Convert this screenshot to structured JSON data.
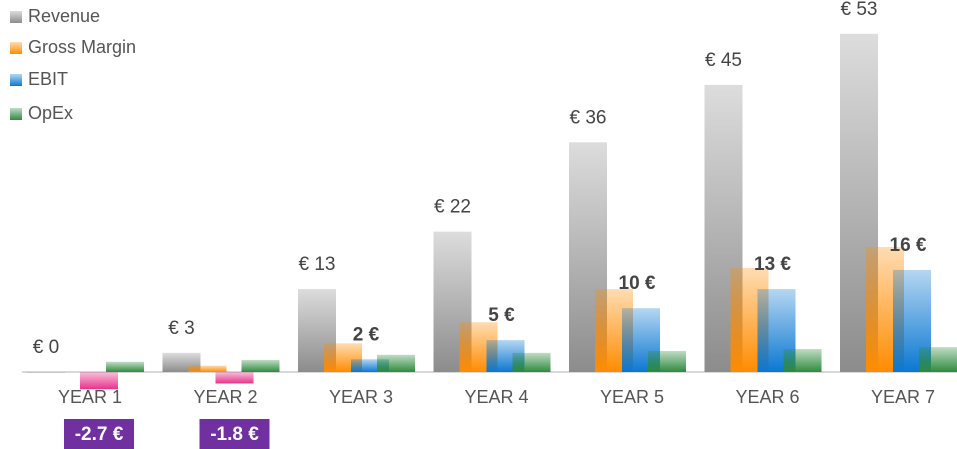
{
  "chart_data": {
    "type": "bar",
    "categories": [
      "YEAR 1",
      "YEAR 2",
      "YEAR 3",
      "YEAR 4",
      "YEAR 5",
      "YEAR 6",
      "YEAR 7"
    ],
    "series": [
      {
        "name": "Revenue",
        "color": "#8c8c8c",
        "values": [
          0,
          3,
          13,
          22,
          36,
          45,
          53
        ],
        "value_labels": [
          "€ 0",
          "€ 3",
          "€ 13",
          "€ 22",
          "€ 36",
          "€ 45",
          "€ 53"
        ]
      },
      {
        "name": "Gross Margin",
        "color": "#ff8c00",
        "values": [
          null,
          1,
          4.5,
          7.8,
          13,
          16.3,
          19.6
        ]
      },
      {
        "name": "EBIT",
        "color": "#0a78d2",
        "negative_color": "#e6338a",
        "values": [
          -2.7,
          -1.8,
          2,
          5,
          10,
          13,
          16
        ],
        "value_labels": [
          "-2.7 €",
          "-1.8 €",
          "2 €",
          "5 €",
          "10 €",
          "13 €",
          "16 €"
        ]
      },
      {
        "name": "OpEx",
        "color": "#2e8b3e",
        "values": [
          1.6,
          1.9,
          2.7,
          3,
          3.3,
          3.6,
          3.9
        ]
      }
    ],
    "negative_label_color": "#7030a0",
    "legend": "top-left"
  }
}
